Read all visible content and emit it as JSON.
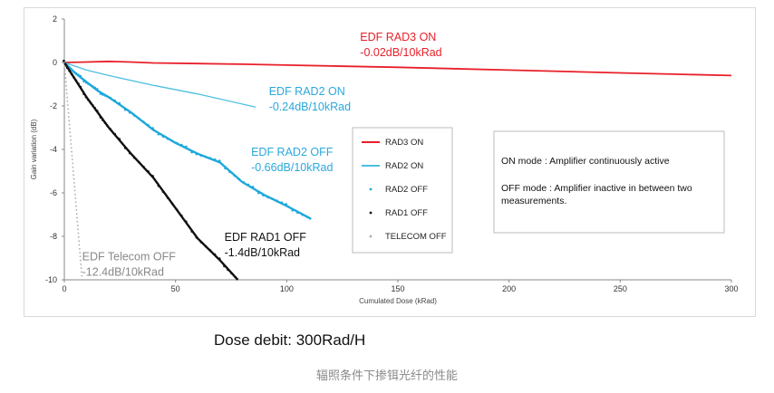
{
  "chart_data": {
    "type": "line",
    "xlabel": "Cumulated Dose (kRad)",
    "ylabel": "Gain variation (dB)",
    "xlim": [
      0,
      300
    ],
    "ylim": [
      -10,
      2
    ],
    "xticks": [
      0,
      50,
      100,
      150,
      200,
      250,
      300
    ],
    "yticks": [
      2,
      0,
      -2,
      -4,
      -6,
      -8,
      -10
    ],
    "x_tick_labels": [
      "0",
      "50",
      "100",
      "150",
      "200",
      "250",
      "300"
    ],
    "y_tick_labels": [
      "2",
      "0",
      "-2",
      "-4",
      "-6",
      "-8",
      "-10"
    ],
    "grid": false,
    "legend_position": "center-right",
    "series": [
      {
        "name": "RAD3 ON",
        "style": "line",
        "color": "#e8202a",
        "x": [
          0,
          10,
          20,
          30,
          40,
          60,
          80,
          100,
          150,
          200,
          250,
          300
        ],
        "y": [
          0,
          0.02,
          0.05,
          0.02,
          -0.02,
          -0.05,
          -0.08,
          -0.12,
          -0.22,
          -0.35,
          -0.48,
          -0.6
        ]
      },
      {
        "name": "RAD2 ON",
        "style": "line",
        "color": "#4dbfe0",
        "x": [
          0,
          10,
          20,
          40,
          60,
          86
        ],
        "y": [
          0,
          -0.35,
          -0.6,
          -1.05,
          -1.45,
          -2.05
        ]
      },
      {
        "name": "RAD2 OFF",
        "style": "markers",
        "color": "#1ea8dc",
        "x": [
          0,
          5,
          10,
          15,
          20,
          30,
          40,
          50,
          60,
          70,
          80,
          90,
          100,
          111
        ],
        "y": [
          0,
          -0.5,
          -0.9,
          -1.3,
          -1.6,
          -2.3,
          -3.1,
          -3.7,
          -4.2,
          -4.6,
          -5.5,
          -6.1,
          -6.6,
          -7.2
        ]
      },
      {
        "name": "RAD1 OFF",
        "style": "markers",
        "color": "#111111",
        "x": [
          0,
          5,
          10,
          15,
          20,
          30,
          40,
          50,
          60,
          70,
          78
        ],
        "y": [
          0,
          -0.8,
          -1.6,
          -2.3,
          -3.0,
          -4.2,
          -5.3,
          -6.7,
          -8.1,
          -9.1,
          -10
        ]
      },
      {
        "name": "TELECOM OFF",
        "style": "dotted",
        "color": "#aaaaaa",
        "x": [
          0,
          2,
          4,
          6,
          8
        ],
        "y": [
          0,
          -2.5,
          -5,
          -7.5,
          -10
        ]
      }
    ],
    "annotations": [
      {
        "lines": [
          "EDF RAD3 ON",
          "-0.02dB/10kRad"
        ],
        "color": "#e8202a",
        "x": 133,
        "y": 1.0
      },
      {
        "lines": [
          "EDF RAD2 ON",
          "-0.24dB/10kRad"
        ],
        "color": "#2aa8dc",
        "x": 92,
        "y": -1.5
      },
      {
        "lines": [
          "EDF RAD2 OFF",
          "-0.66dB/10kRad"
        ],
        "color": "#2aa8dc",
        "x": 84,
        "y": -4.3
      },
      {
        "lines": [
          "EDF RAD1 OFF",
          "-1.4dB/10kRad"
        ],
        "color": "#111111",
        "x": 72,
        "y": -8.2
      },
      {
        "lines": [
          "EDF Telecom OFF",
          "-12.4dB/10kRad"
        ],
        "color": "#888888",
        "x": 8,
        "y": -9.1
      }
    ],
    "notes": [
      "ON mode : Amplifier continuously active",
      "OFF mode : Amplifier inactive in between two",
      "measurements."
    ]
  },
  "dose_debit": "Dose debit: 300Rad/H",
  "caption": "辐照条件下掺铒光纤的性能"
}
